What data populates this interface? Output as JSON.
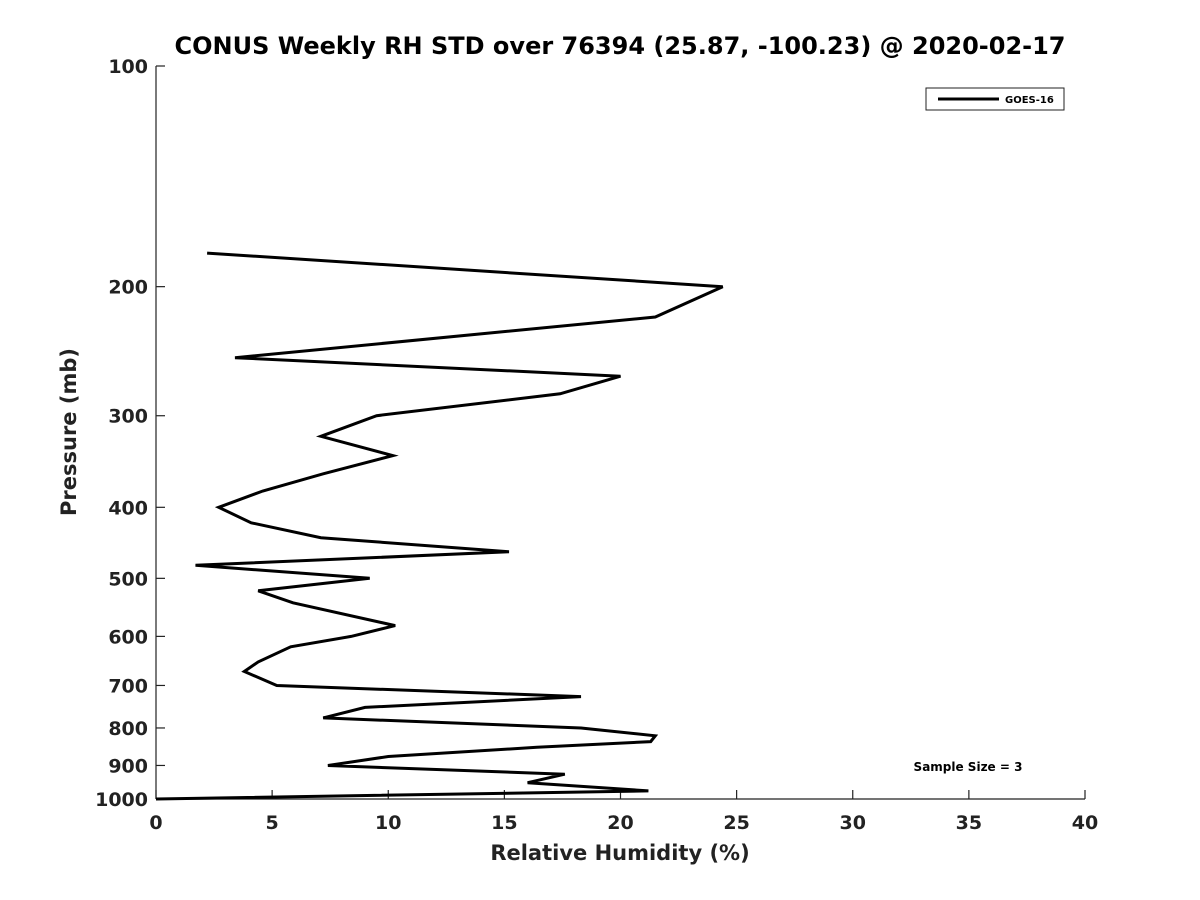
{
  "chart_data": {
    "type": "line",
    "title": "CONUS Weekly RH STD over 76394 (25.87, -100.23) @ 2020-02-17",
    "xlabel": "Relative Humidity (%)",
    "ylabel": "Pressure (mb)",
    "xlim": [
      0,
      40
    ],
    "ylim": [
      1000,
      100
    ],
    "yscale": "log",
    "grid": false,
    "legend_position": "top-right",
    "xticks": [
      0,
      5,
      10,
      15,
      20,
      25,
      30,
      35,
      40
    ],
    "xtick_labels": [
      "0",
      "5",
      "10",
      "15",
      "20",
      "25",
      "30",
      "35",
      "40"
    ],
    "yticks": [
      100,
      200,
      300,
      400,
      500,
      600,
      700,
      800,
      900,
      1000
    ],
    "ytick_labels": [
      "100",
      "200",
      "300",
      "400",
      "500",
      "600",
      "700",
      "800",
      "900",
      "1000"
    ],
    "series": [
      {
        "name": "GOES-16",
        "color": "#000000",
        "x": [
          2.2,
          24.4,
          21.5,
          3.4,
          20.0,
          17.4,
          9.5,
          7.1,
          10.2,
          7.2,
          4.6,
          2.7,
          4.1,
          7.1,
          15.2,
          1.7,
          9.2,
          4.4,
          5.9,
          10.3,
          8.4,
          5.8,
          4.4,
          3.8,
          5.2,
          18.3,
          9.0,
          7.2,
          18.3,
          21.5,
          21.3,
          16.4,
          10.0,
          7.4,
          17.6,
          16.0,
          21.2,
          0.0
        ],
        "y": [
          180,
          200,
          220,
          250,
          265,
          280,
          300,
          320,
          340,
          360,
          380,
          400,
          420,
          440,
          460,
          480,
          500,
          520,
          540,
          580,
          600,
          620,
          650,
          670,
          700,
          725,
          750,
          775,
          800,
          820,
          835,
          850,
          875,
          900,
          925,
          950,
          975,
          1000
        ]
      }
    ],
    "annotations": [
      "Sample Size = 3"
    ]
  }
}
